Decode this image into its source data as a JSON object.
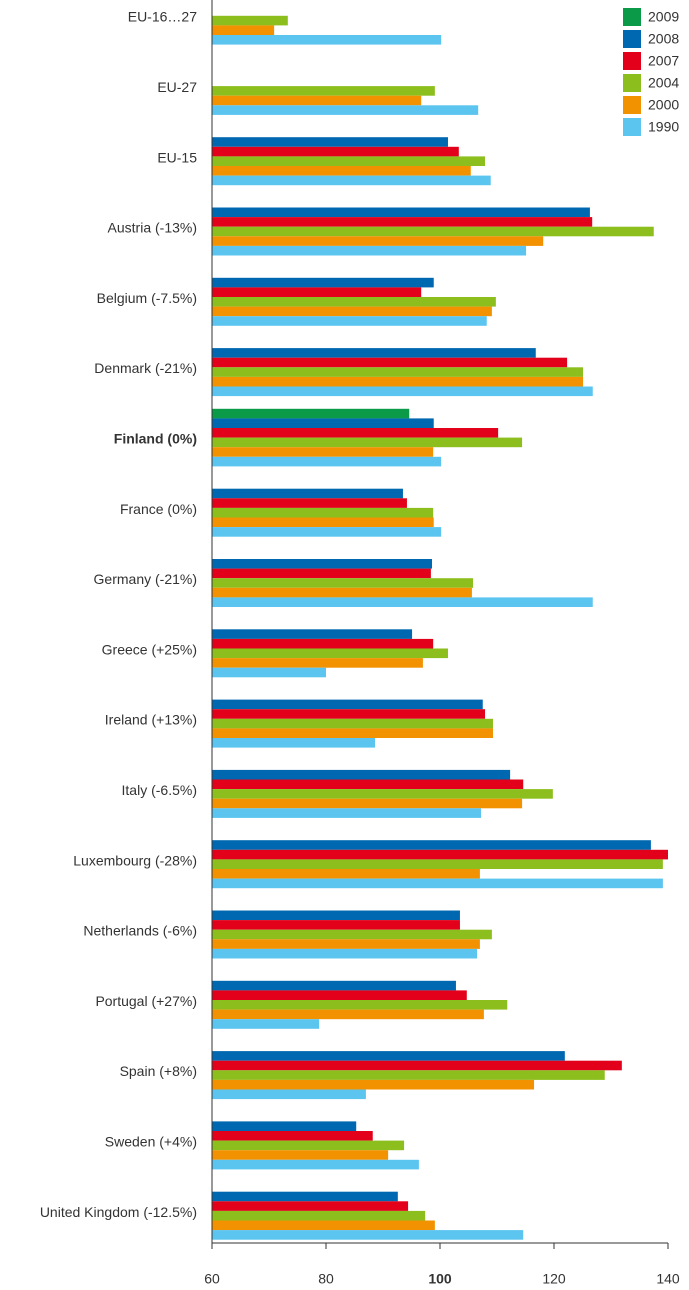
{
  "chart_data": {
    "type": "hbar",
    "categories": [
      "EU-16…27",
      "EU-27",
      "EU-15",
      "Austria (-13%)",
      "Belgium (-7.5%)",
      "Denmark (-21%)",
      "Finland (0%)",
      "France (0%)",
      "Germany (-21%)",
      "Greece (+25%)",
      "Ireland (+13%)",
      "Italy (-6.5%)",
      "Luxembourg (-28%)",
      "Netherlands (-6%)",
      "Portugal (+27%)",
      "Spain (+8%)",
      "Sweden (+4%)",
      "United Kingdom (-12.5%)"
    ],
    "series": [
      {
        "name": "2009",
        "color": "#0a9a48",
        "values": [
          null,
          null,
          null,
          null,
          null,
          null,
          94.6,
          null,
          null,
          null,
          null,
          null,
          null,
          null,
          null,
          null,
          null,
          null
        ]
      },
      {
        "name": "2008",
        "color": "#0068b0",
        "values": [
          null,
          null,
          101.4,
          126.3,
          98.9,
          116.8,
          98.9,
          93.5,
          98.6,
          95.1,
          107.5,
          112.3,
          137,
          103.5,
          102.8,
          121.9,
          85.3,
          92.6
        ]
      },
      {
        "name": "2007",
        "color": "#e2001a",
        "values": [
          null,
          null,
          103.3,
          126.7,
          96.7,
          122.3,
          110.2,
          94.2,
          98.4,
          98.8,
          107.9,
          114.6,
          140,
          103.5,
          104.7,
          131.9,
          88.2,
          94.4
        ]
      },
      {
        "name": "2004",
        "color": "#8cbf1e",
        "values": [
          73.3,
          99.1,
          107.9,
          137.5,
          109.8,
          125.1,
          114.4,
          98.8,
          105.8,
          101.4,
          109.3,
          119.8,
          139.1,
          109.1,
          111.8,
          128.9,
          93.7,
          97.4
        ]
      },
      {
        "name": "2000",
        "color": "#f39200",
        "values": [
          70.9,
          96.7,
          105.4,
          118.1,
          109.1,
          125.1,
          98.8,
          98.9,
          105.6,
          97.0,
          109.3,
          114.4,
          107,
          107,
          107.7,
          116.5,
          90.9,
          99.1
        ]
      },
      {
        "name": "1990",
        "color": "#5bc5f0",
        "values": [
          100.2,
          106.7,
          108.9,
          115.1,
          108.2,
          126.8,
          100.2,
          100.2,
          126.8,
          80,
          88.6,
          107.2,
          139.1,
          106.5,
          78.8,
          87,
          96.3,
          114.6
        ]
      }
    ],
    "xlim": [
      60,
      140
    ],
    "xticks": [
      60,
      80,
      100,
      120,
      140
    ],
    "highlight_category_index": 6,
    "highlight_tick_index": 2,
    "legend": "top-right"
  }
}
